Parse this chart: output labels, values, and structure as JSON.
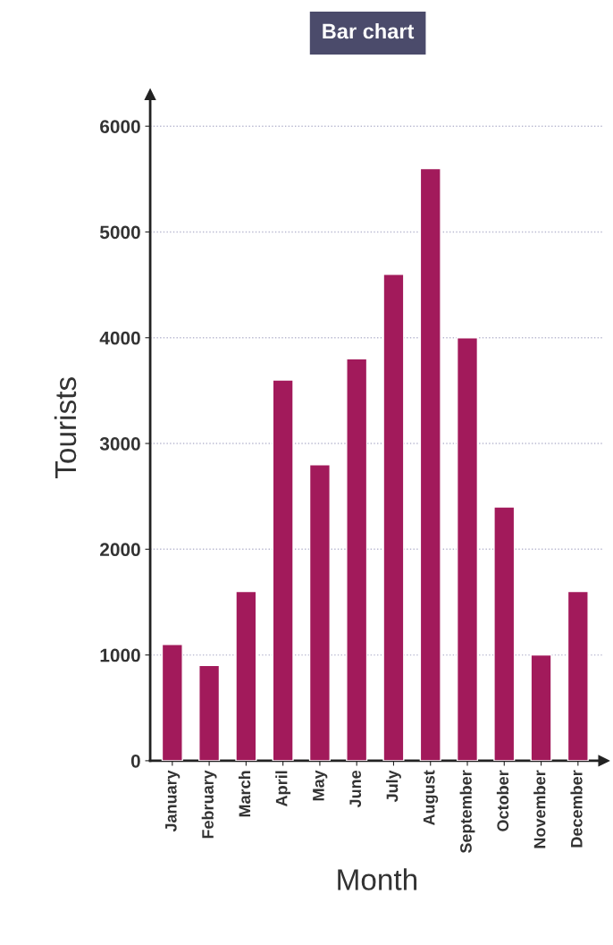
{
  "chart_data": {
    "type": "bar",
    "title": "Bar chart",
    "xlabel": "Month",
    "ylabel": "Tourists",
    "categories": [
      "January",
      "February",
      "March",
      "April",
      "May",
      "June",
      "July",
      "August",
      "September",
      "October",
      "November",
      "December"
    ],
    "values": [
      1100,
      900,
      1600,
      3600,
      2800,
      3800,
      4600,
      5600,
      4000,
      2400,
      1000,
      1600
    ],
    "color": "#a21a5b",
    "ylim": [
      0,
      6300
    ],
    "yticks": [
      0,
      1000,
      2000,
      3000,
      4000,
      5000,
      6000
    ],
    "grid": "y"
  }
}
